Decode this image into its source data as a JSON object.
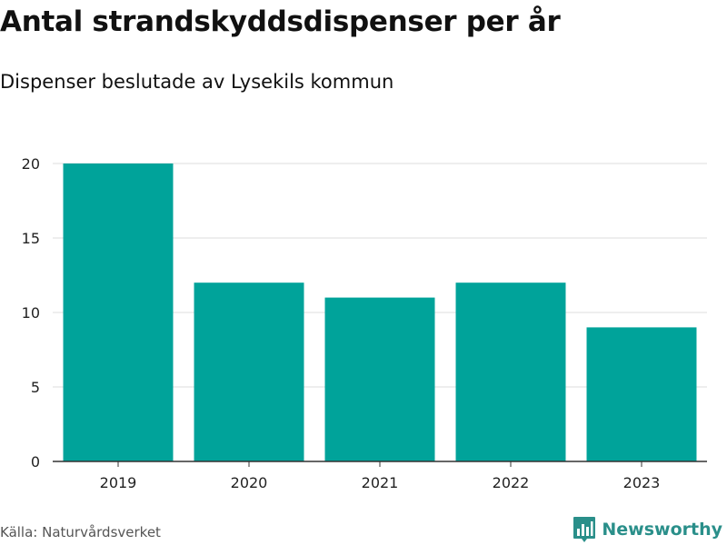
{
  "title": "Antal strandskyddsdispenser per år",
  "subtitle": "Dispenser beslutade av Lysekils kommun",
  "source": "Källa: Naturvårdsverket",
  "brand": {
    "name": "Newsworthy",
    "icon": "bar-chart-logo-icon"
  },
  "colors": {
    "bar": "#00a39a",
    "grid": "#dddddd",
    "axis": "#333333",
    "brand": "#2a8f8a"
  },
  "chart_data": {
    "type": "bar",
    "title": "Antal strandskyddsdispenser per år",
    "subtitle": "Dispenser beslutade av Lysekils kommun",
    "xlabel": "",
    "ylabel": "",
    "categories": [
      "2019",
      "2020",
      "2021",
      "2022",
      "2023"
    ],
    "values": [
      20,
      12,
      11,
      12,
      9
    ],
    "ylim": [
      0,
      20
    ],
    "yticks": [
      0,
      5,
      10,
      15,
      20
    ],
    "grid": true,
    "legend": "none"
  }
}
